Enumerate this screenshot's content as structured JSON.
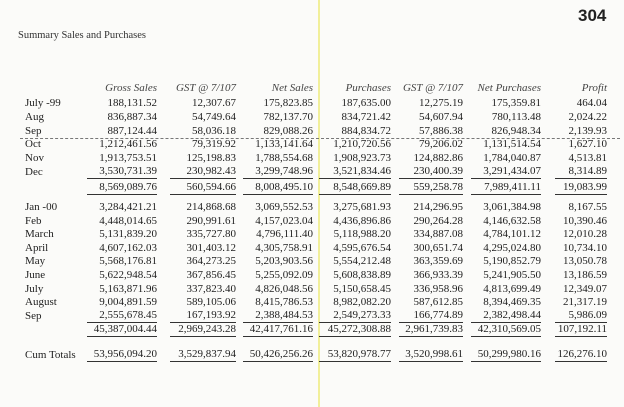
{
  "page_number": "304",
  "title": "Summary Sales and Purchases",
  "headers": [
    "Gross Sales",
    "GST @ 7/107",
    "Net Sales",
    "Purchases",
    "GST @ 7/107",
    "Net Purchases",
    "Profit"
  ],
  "period1": [
    {
      "label": "July -99",
      "values": [
        "188,131.52",
        "12,307.67",
        "175,823.85",
        "187,635.00",
        "12,275.19",
        "175,359.81",
        "464.04"
      ]
    },
    {
      "label": "Aug",
      "values": [
        "836,887.34",
        "54,749.64",
        "782,137.70",
        "834,721.42",
        "54,607.94",
        "780,113.48",
        "2,024.22"
      ]
    },
    {
      "label": "Sep",
      "values": [
        "887,124.44",
        "58,036.18",
        "829,088.26",
        "884,834.72",
        "57,886.38",
        "826,948.34",
        "2,139.93"
      ]
    },
    {
      "label": "Oct",
      "values": [
        "1,212,461.56",
        "79,319.92",
        "1,133,141.64",
        "1,210,720.56",
        "79,206.02",
        "1,131,514.54",
        "1,627.10"
      ]
    },
    {
      "label": "Nov",
      "values": [
        "1,913,753.51",
        "125,198.83",
        "1,788,554.68",
        "1,908,923.73",
        "124,882.86",
        "1,784,040.87",
        "4,513.81"
      ]
    },
    {
      "label": "Dec",
      "values": [
        "3,530,731.39",
        "230,982.43",
        "3,299,748.96",
        "3,521,834.46",
        "230,400.39",
        "3,291,434.07",
        "8,314.89"
      ]
    }
  ],
  "period1_total": [
    "8,569,089.76",
    "560,594.66",
    "8,008,495.10",
    "8,548,669.89",
    "559,258.78",
    "7,989,411.11",
    "19,083.99"
  ],
  "period2": [
    {
      "label": "Jan -00",
      "values": [
        "3,284,421.21",
        "214,868.68",
        "3,069,552.53",
        "3,275,681.93",
        "214,296.95",
        "3,061,384.98",
        "8,167.55"
      ]
    },
    {
      "label": "Feb",
      "values": [
        "4,448,014.65",
        "290,991.61",
        "4,157,023.04",
        "4,436,896.86",
        "290,264.28",
        "4,146,632.58",
        "10,390.46"
      ]
    },
    {
      "label": "March",
      "values": [
        "5,131,839.20",
        "335,727.80",
        "4,796,111.40",
        "5,118,988.20",
        "334,887.08",
        "4,784,101.12",
        "12,010.28"
      ]
    },
    {
      "label": "April",
      "values": [
        "4,607,162.03",
        "301,403.12",
        "4,305,758.91",
        "4,595,676.54",
        "300,651.74",
        "4,295,024.80",
        "10,734.10"
      ]
    },
    {
      "label": "May",
      "values": [
        "5,568,176.81",
        "364,273.25",
        "5,203,903.56",
        "5,554,212.48",
        "363,359.69",
        "5,190,852.79",
        "13,050.78"
      ]
    },
    {
      "label": "June",
      "values": [
        "5,622,948.54",
        "367,856.45",
        "5,255,092.09",
        "5,608,838.89",
        "366,933.39",
        "5,241,905.50",
        "13,186.59"
      ]
    },
    {
      "label": "July",
      "values": [
        "5,163,871.96",
        "337,823.40",
        "4,826,048.56",
        "5,150,658.45",
        "336,958.96",
        "4,813,699.49",
        "12,349.07"
      ]
    },
    {
      "label": "August",
      "values": [
        "9,004,891.59",
        "589,105.06",
        "8,415,786.53",
        "8,982,082.20",
        "587,612.85",
        "8,394,469.35",
        "21,317.19"
      ]
    },
    {
      "label": "Sep",
      "values": [
        "2,555,678.45",
        "167,193.92",
        "2,388,484.53",
        "2,549,273.33",
        "166,774.89",
        "2,382,498.44",
        "5,986.09"
      ]
    }
  ],
  "period2_total": [
    "45,387,004.44",
    "2,969,243.28",
    "42,417,761.16",
    "45,272,308.88",
    "2,961,739.83",
    "42,310,569.05",
    "107,192.11"
  ],
  "cum_totals": {
    "label": "Cum Totals",
    "values": [
      "53,956,094.20",
      "3,529,837.94",
      "50,426,256.26",
      "53,820,978.77",
      "3,520,998.61",
      "50,299,980.16",
      "126,276.10"
    ]
  }
}
